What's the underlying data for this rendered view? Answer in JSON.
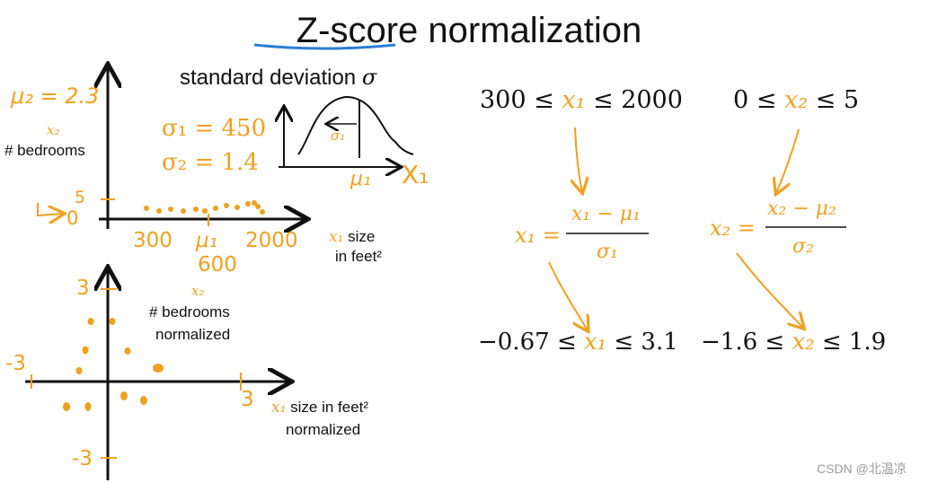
{
  "title": "Z-score normalization",
  "std_dev_label": "standard deviation",
  "sigma_symbol": "σ",
  "top_plot": {
    "mu2_note": "μ₂ = 2.3",
    "y_var": "x₂",
    "y_label": "# bedrooms",
    "y_tick_5": "5",
    "y_tick_0": "0",
    "x_var": "x₁",
    "x_label_1": "size",
    "x_label_2": "in feet²",
    "x_tick_300": "300",
    "x_tick_mu1": "μ₁",
    "x_tick_600": "600",
    "x_tick_2000": "2000",
    "sigma1": "σ₁ = 450",
    "sigma2": "σ₂ = 1.4",
    "bell_sigma": "σ₁",
    "bell_mu": "μ₁",
    "bell_x": "X₁"
  },
  "bottom_plot": {
    "y_var": "x₂",
    "y_label_1": "# bedrooms",
    "y_label_2": "normalized",
    "tick_top": "3",
    "tick_left": "-3",
    "tick_right": "3",
    "tick_bottom": "-3",
    "x_var": "x₁",
    "x_label_1": "size in feet²",
    "x_label_2": "normalized"
  },
  "ranges": {
    "x1_range_left": "300 ≤",
    "x1_range_var": "x₁",
    "x1_range_right": "≤ 2000",
    "x2_range_left": "0 ≤",
    "x2_range_var": "x₂",
    "x2_range_right": "≤ 5"
  },
  "formulas": {
    "f1_lhs": "x₁ =",
    "f1_num": "x₁ − μ₁",
    "f1_den": "σ₁",
    "f2_lhs": "x₂ =",
    "f2_num": "x₂ − μ₂",
    "f2_den": "σ₂"
  },
  "results": {
    "r1_left": "−0.67 ≤",
    "r1_var": "x₁",
    "r1_right": "≤ 3.1",
    "r2_left": "−1.6 ≤",
    "r2_var": "x₂",
    "r2_right": "≤ 1.9"
  },
  "watermark": "CSDN @北温凉",
  "colors": {
    "accent": "#f0a020",
    "underline": "#2a7fd4",
    "ink": "#111111"
  }
}
